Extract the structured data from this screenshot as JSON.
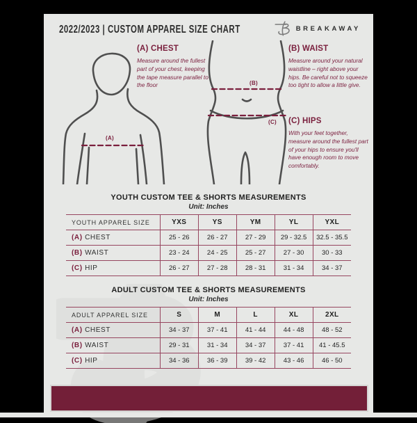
{
  "header": {
    "title": "2022/2023  |  CUSTOM APPAREL SIZE CHART",
    "brand": "BREAKAWAY"
  },
  "colors": {
    "accent_maroon": "#731f38",
    "text_maroon": "#7a1f3d",
    "page_background": "#e7e8e6",
    "frame": "#000000",
    "figure_stroke": "#4f4f4f",
    "table_border": "#96455f"
  },
  "guide": {
    "labels": {
      "a": "(A)",
      "b": "(B)",
      "c": "(C)"
    },
    "sections": [
      {
        "heading": "(A) CHEST",
        "body": "Measure around the fullest part of your chest, keeping the tape measure parallel to the floor"
      },
      {
        "heading": "(B) WAIST",
        "body": "Measure around your natural waistline – right above your hips. Be careful not to squeeze too tight to allow a little give."
      },
      {
        "heading": "(C) HIPS",
        "body": "With your feet together, measure around the fullest part of your hips to ensure you'll have enough room to move comfortably."
      }
    ]
  },
  "youth_table": {
    "title": "YOUTH CUSTOM TEE & SHORTS MEASUREMENTS",
    "unit": "Unit: Inches",
    "header": [
      "YOUTH APPAREL SIZE",
      "YXS",
      "YS",
      "YM",
      "YL",
      "YXL"
    ],
    "rows": [
      {
        "prefix": "(A)",
        "label": "CHEST",
        "values": [
          "25 - 26",
          "26 - 27",
          "27 - 29",
          "29 - 32.5",
          "32.5 - 35.5"
        ]
      },
      {
        "prefix": "(B)",
        "label": "WAIST",
        "values": [
          "23 - 24",
          "24 - 25",
          "25 - 27",
          "27 - 30",
          "30 - 33"
        ]
      },
      {
        "prefix": "(C)",
        "label": "HIP",
        "values": [
          "26 - 27",
          "27 - 28",
          "28 - 31",
          "31 - 34",
          "34 - 37"
        ]
      }
    ]
  },
  "adult_table": {
    "title": "ADULT CUSTOM TEE & SHORTS MEASUREMENTS",
    "unit": "Unit: Inches",
    "header": [
      "ADULT APPAREL SIZE",
      "S",
      "M",
      "L",
      "XL",
      "2XL"
    ],
    "rows": [
      {
        "prefix": "(A)",
        "label": "CHEST",
        "values": [
          "34 - 37",
          "37 - 41",
          "41 - 44",
          "44 - 48",
          "48 - 52"
        ]
      },
      {
        "prefix": "(B)",
        "label": "WAIST",
        "values": [
          "29 - 31",
          "31 - 34",
          "34 - 37",
          "37 - 41",
          "41 - 45.5"
        ]
      },
      {
        "prefix": "(C)",
        "label": "HIP",
        "values": [
          "34 - 36",
          "36 - 39",
          "39 - 42",
          "43 - 46",
          "46 - 50"
        ]
      }
    ]
  }
}
